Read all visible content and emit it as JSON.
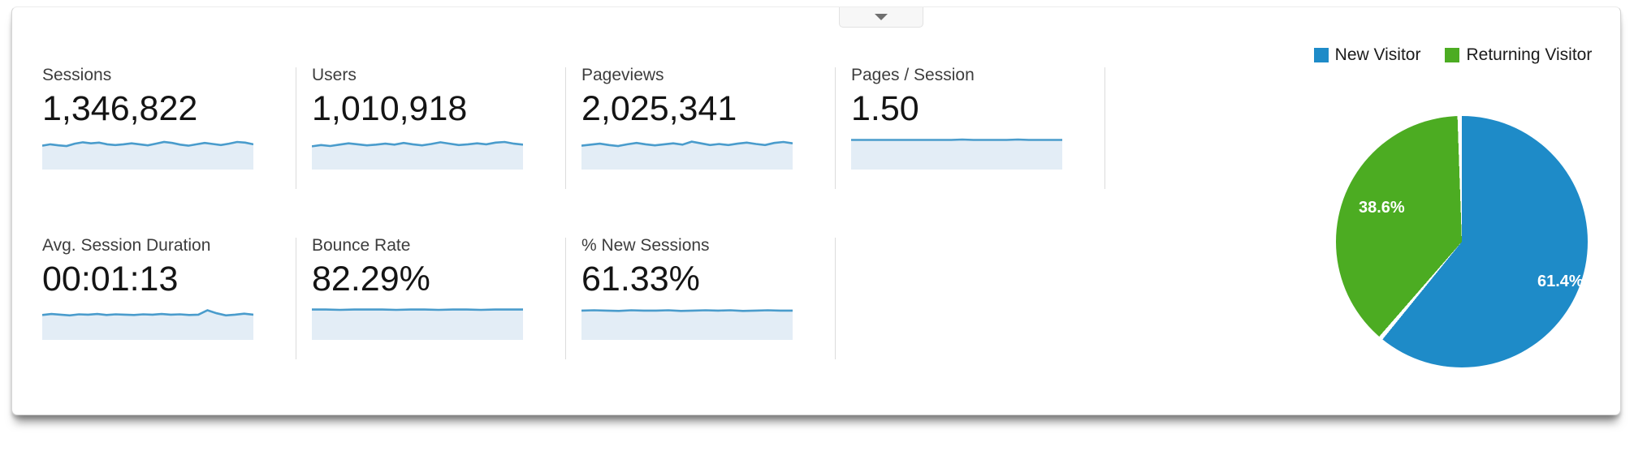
{
  "panel": {
    "collapse_button": {
      "icon": "chevron-down"
    }
  },
  "metrics": {
    "sparkline_colors": {
      "line": "#4A9CCC",
      "fill": "#E3EDF6"
    },
    "cards": [
      {
        "label": "Sessions",
        "value": "1,346,822",
        "row": 1,
        "spark": [
          0.3,
          0.26,
          0.29,
          0.31,
          0.24,
          0.2,
          0.23,
          0.21,
          0.26,
          0.28,
          0.26,
          0.23,
          0.26,
          0.29,
          0.24,
          0.19,
          0.22,
          0.27,
          0.3,
          0.26,
          0.22,
          0.25,
          0.28,
          0.24,
          0.19,
          0.21,
          0.26
        ]
      },
      {
        "label": "Users",
        "value": "1,010,918",
        "row": 1,
        "spark": [
          0.32,
          0.28,
          0.31,
          0.27,
          0.23,
          0.26,
          0.29,
          0.27,
          0.24,
          0.27,
          0.22,
          0.26,
          0.29,
          0.25,
          0.2,
          0.24,
          0.28,
          0.26,
          0.23,
          0.26,
          0.21,
          0.19,
          0.24,
          0.27
        ]
      },
      {
        "label": "Pageviews",
        "value": "2,025,341",
        "row": 1,
        "spark": [
          0.3,
          0.27,
          0.24,
          0.28,
          0.31,
          0.26,
          0.22,
          0.26,
          0.29,
          0.26,
          0.23,
          0.27,
          0.18,
          0.23,
          0.28,
          0.25,
          0.28,
          0.24,
          0.21,
          0.25,
          0.28,
          0.22,
          0.19,
          0.23
        ]
      },
      {
        "label": "Pages / Session",
        "value": "1.50",
        "row": 1,
        "spark": [
          0.13,
          0.13,
          0.13,
          0.13,
          0.13,
          0.13,
          0.13,
          0.13,
          0.13,
          0.13,
          0.12,
          0.13,
          0.13,
          0.13,
          0.13,
          0.12,
          0.13,
          0.13,
          0.13,
          0.13
        ]
      },
      {
        "label": "Avg. Session Duration",
        "value": "00:01:13",
        "row": 2,
        "spark": [
          0.27,
          0.24,
          0.26,
          0.28,
          0.25,
          0.26,
          0.24,
          0.27,
          0.25,
          0.26,
          0.27,
          0.25,
          0.26,
          0.24,
          0.26,
          0.25,
          0.27,
          0.26,
          0.13,
          0.22,
          0.28,
          0.26,
          0.23,
          0.26
        ]
      },
      {
        "label": "Bounce Rate",
        "value": "82.29%",
        "row": 2,
        "spark": [
          0.11,
          0.11,
          0.12,
          0.11,
          0.11,
          0.11,
          0.12,
          0.11,
          0.11,
          0.12,
          0.11,
          0.11,
          0.12,
          0.11,
          0.11,
          0.11
        ]
      },
      {
        "label": "% New Sessions",
        "value": "61.33%",
        "row": 2,
        "spark": [
          0.14,
          0.13,
          0.14,
          0.15,
          0.13,
          0.14,
          0.14,
          0.13,
          0.15,
          0.14,
          0.13,
          0.14,
          0.13,
          0.15,
          0.14,
          0.13,
          0.14,
          0.14
        ]
      }
    ]
  },
  "chart_data": {
    "type": "pie",
    "title": "",
    "legend_position": "top",
    "legend": [
      {
        "label": "New Visitor",
        "color": "#1E8BC8"
      },
      {
        "label": "Returning Visitor",
        "color": "#4CAC22"
      }
    ],
    "slices": [
      {
        "label": "New Visitor",
        "value": 61.4,
        "display": "61.4%",
        "color": "#1E8BC8"
      },
      {
        "label": "Returning Visitor",
        "value": 38.6,
        "display": "38.6%",
        "color": "#4CAC22"
      }
    ]
  }
}
